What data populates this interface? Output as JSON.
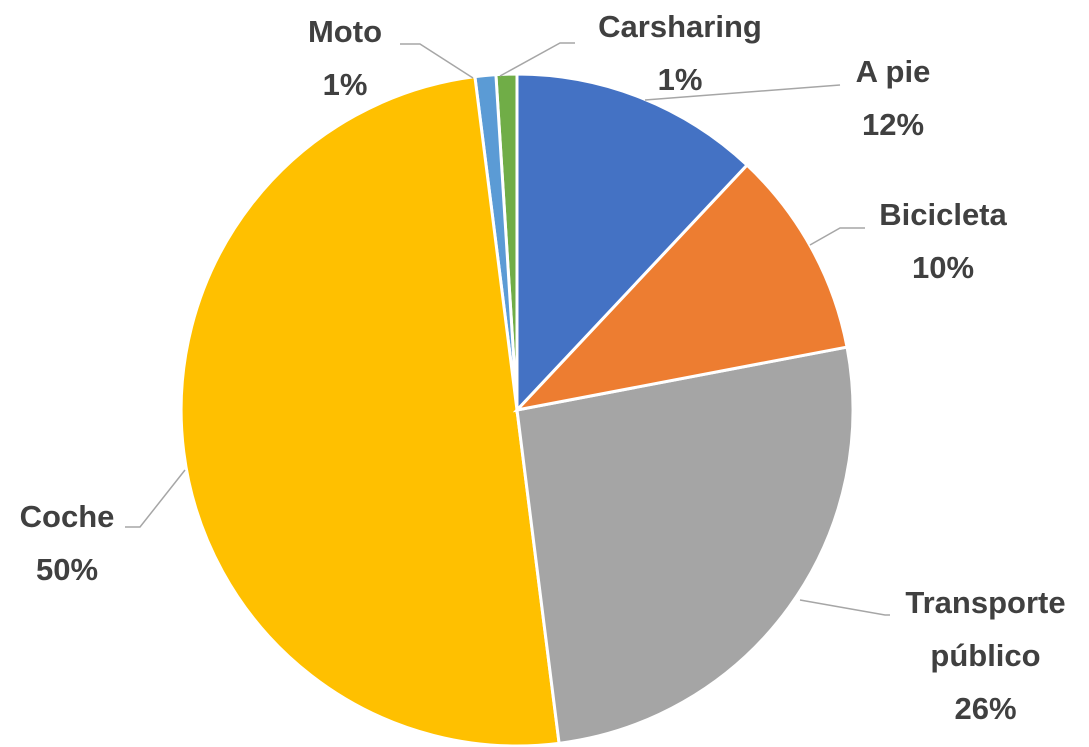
{
  "chart_data": {
    "type": "pie",
    "categories": [
      "A pie",
      "Bicicleta",
      "Transporte público",
      "Coche",
      "Moto",
      "Carsharing"
    ],
    "values": [
      12,
      10,
      26,
      50,
      1,
      1
    ],
    "value_labels": [
      "12%",
      "10%",
      "26%",
      "50%",
      "1%",
      "1%"
    ],
    "colors": [
      "#4472c4",
      "#ed7d31",
      "#a5a5a5",
      "#ffc000",
      "#5b9bd5",
      "#70ad47"
    ]
  }
}
